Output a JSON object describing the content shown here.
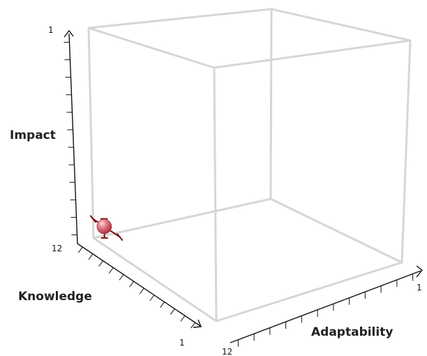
{
  "chart_data": {
    "type": "scatter",
    "axes": {
      "x": {
        "label": "Adaptability",
        "range": [
          12,
          1
        ],
        "tick_labels": [
          "12",
          "1"
        ]
      },
      "y": {
        "label": "Impact",
        "range": [
          12,
          1
        ],
        "tick_labels": [
          "12",
          "1"
        ]
      },
      "z": {
        "label": "Knowledge",
        "range": [
          12,
          1
        ],
        "tick_labels": [
          "12",
          "1"
        ]
      }
    },
    "points": [
      {
        "adaptability": 12,
        "impact": 11,
        "knowledge": 11,
        "error_adaptability": [
          12,
          12
        ],
        "error_impact": [
          11.6,
          10.6
        ],
        "error_knowledge": [
          9.6,
          12
        ]
      }
    ],
    "colors": {
      "point": "#cf4c5b",
      "error_bar": "#7a1018",
      "box": "#d6d6d6",
      "axis": "#111111"
    }
  }
}
